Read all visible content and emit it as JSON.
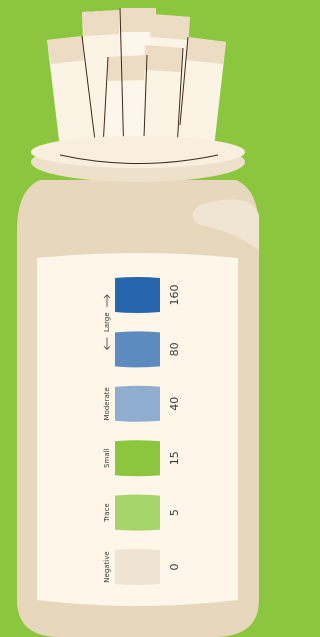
{
  "scale": {
    "levels": [
      {
        "value": 160,
        "color": "#2465ad"
      },
      {
        "value": 80,
        "color": "#5b8bbf"
      },
      {
        "value": 40,
        "color": "#8fadcf"
      },
      {
        "value": 15,
        "color": "#8cc63f"
      },
      {
        "value": 5,
        "color": "#a6d46a"
      },
      {
        "value": 0,
        "color": "#efe4d3"
      }
    ],
    "labels": [
      {
        "text": "Large",
        "from": 0,
        "to": 1
      },
      {
        "text": "Moderate",
        "from": 2,
        "to": 2
      },
      {
        "text": "Small",
        "from": 3,
        "to": 3
      },
      {
        "text": "Trace",
        "from": 4,
        "to": 4
      },
      {
        "text": "Negative",
        "from": 5,
        "to": 5
      }
    ]
  }
}
